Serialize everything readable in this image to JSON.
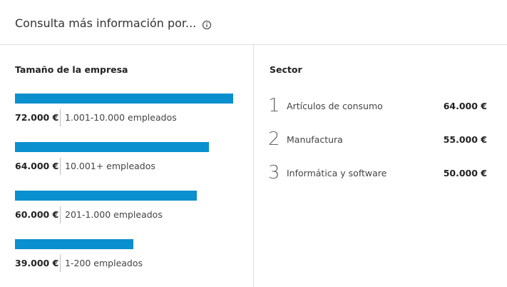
{
  "header": {
    "title": "Consulta más información por..."
  },
  "size_section": {
    "title": "Tamaño de la empresa",
    "rows": [
      {
        "value": 72000,
        "value_label": "72.000 €",
        "label": "1.001-10.000 empleados"
      },
      {
        "value": 64000,
        "value_label": "64.000 €",
        "label": "10.001+ empleados"
      },
      {
        "value": 60000,
        "value_label": "60.000 €",
        "label": "201-1.000 empleados"
      },
      {
        "value": 39000,
        "value_label": "39.000 €",
        "label": "1-200 empleados"
      }
    ]
  },
  "sector_section": {
    "title": "Sector",
    "rows": [
      {
        "rank": "1",
        "name": "Artículos de consumo",
        "value_label": "64.000 €"
      },
      {
        "rank": "2",
        "name": "Manufactura",
        "value_label": "55.000 €"
      },
      {
        "rank": "3",
        "name": "Informática y software",
        "value_label": "50.000 €"
      }
    ]
  }
}
